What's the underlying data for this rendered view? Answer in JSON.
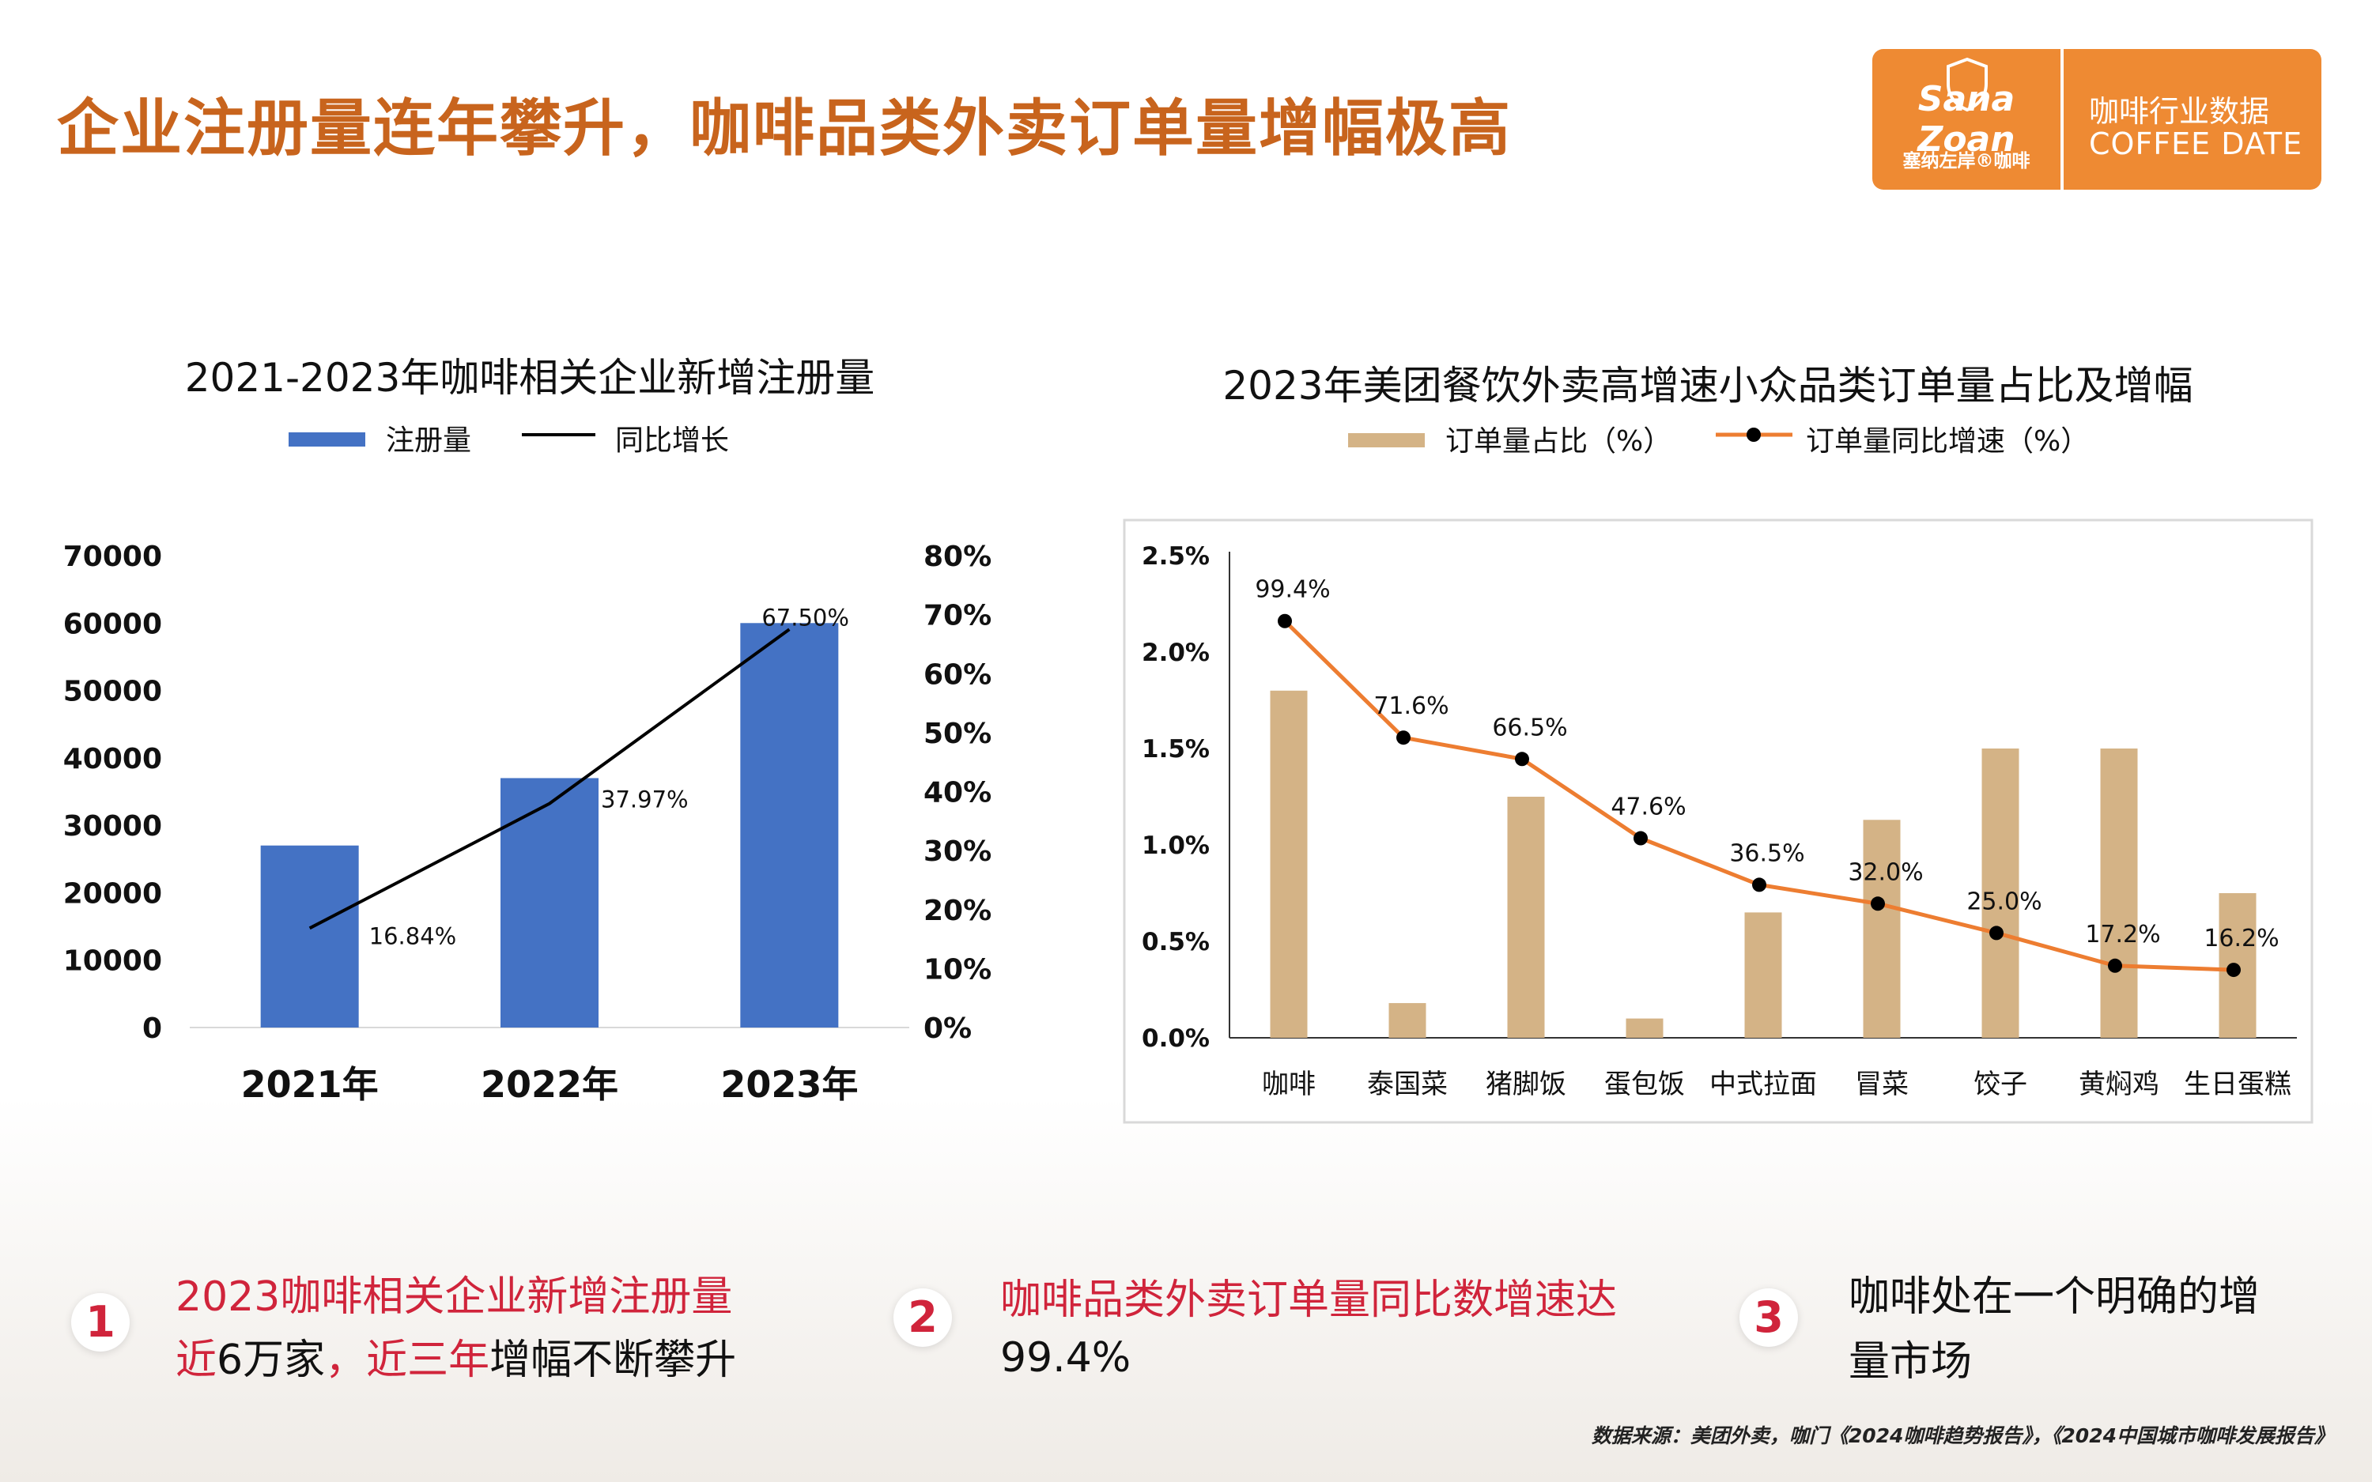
{
  "header": {
    "title": "企业注册量连年攀升，咖啡品类外卖订单量增幅极高",
    "logo": {
      "brand": "Sana Zoan",
      "cn_name": "塞纳左岸®咖啡",
      "right_line1": "咖啡行业数据",
      "right_line2": "COFFEE DATE"
    }
  },
  "chart_data": [
    {
      "type": "bar",
      "title": "2021-2023年咖啡相关企业新增注册量",
      "categories": [
        "2021年",
        "2022年",
        "2023年"
      ],
      "series": [
        {
          "name": "注册量",
          "type": "bar",
          "axis": "left",
          "values": [
            27000,
            37000,
            60000
          ],
          "color": "#4472c4"
        },
        {
          "name": "同比增长",
          "type": "line",
          "axis": "right",
          "values": [
            16.84,
            37.97,
            67.5
          ],
          "labels": [
            "16.84%",
            "37.97%",
            "67.50%"
          ],
          "color": "#000000"
        }
      ],
      "y_left": {
        "min": 0,
        "max": 70000,
        "ticks": [
          "0",
          "10000",
          "20000",
          "30000",
          "40000",
          "50000",
          "60000",
          "70000"
        ]
      },
      "y_right": {
        "min": 0,
        "max": 80,
        "ticks": [
          "0%",
          "10%",
          "20%",
          "30%",
          "40%",
          "50%",
          "60%",
          "70%",
          "80%"
        ]
      },
      "legend": "top",
      "grid": false
    },
    {
      "type": "bar",
      "title": "2023年美团餐饮外卖高增速小众品类订单量占比及增幅",
      "categories": [
        "咖啡",
        "泰国菜",
        "猪脚饭",
        "蛋包饭",
        "中式拉面",
        "冒菜",
        "饺子",
        "黄焖鸡",
        "生日蛋糕"
      ],
      "series": [
        {
          "name": "订单量占比（%）",
          "type": "bar",
          "axis": "left",
          "values": [
            1.8,
            0.18,
            1.25,
            0.1,
            0.65,
            1.13,
            1.5,
            1.5,
            0.75
          ],
          "color": "#d4b386"
        },
        {
          "name": "订单量同比增速（%）",
          "type": "line",
          "axis": "right",
          "values": [
            99.4,
            71.6,
            66.5,
            47.6,
            36.5,
            32.0,
            25.0,
            17.2,
            16.2
          ],
          "labels": [
            "99.4%",
            "71.6%",
            "66.5%",
            "47.6%",
            "36.5%",
            "32.0%",
            "25.0%",
            "17.2%",
            "16.2%"
          ],
          "color": "#ed7d31",
          "marker_color": "#000000"
        }
      ],
      "y_left": {
        "min": 0,
        "max": 2.5,
        "ticks": [
          "0.0%",
          "0.5%",
          "1.0%",
          "1.5%",
          "2.0%",
          "2.5%"
        ]
      },
      "y_right": {
        "min": 0,
        "max": 115
      },
      "legend": "top",
      "grid": false
    }
  ],
  "points": [
    {
      "num": "1",
      "line1": "2023咖啡相关企业新增注册量",
      "line2_a": "近",
      "line2_b": "6万家",
      "line2_c": "，近三年",
      "line2_d": "增幅不断攀升"
    },
    {
      "num": "2",
      "line1": "咖啡品类外卖订单量同比数增速达",
      "line2": "99.4%"
    },
    {
      "num": "3",
      "line1": "咖啡处在一个明确的增",
      "line2": "量市场"
    }
  ],
  "source": "数据来源：美团外卖，咖门《2024咖啡趋势报告》，《2024中国城市咖啡发展报告》"
}
